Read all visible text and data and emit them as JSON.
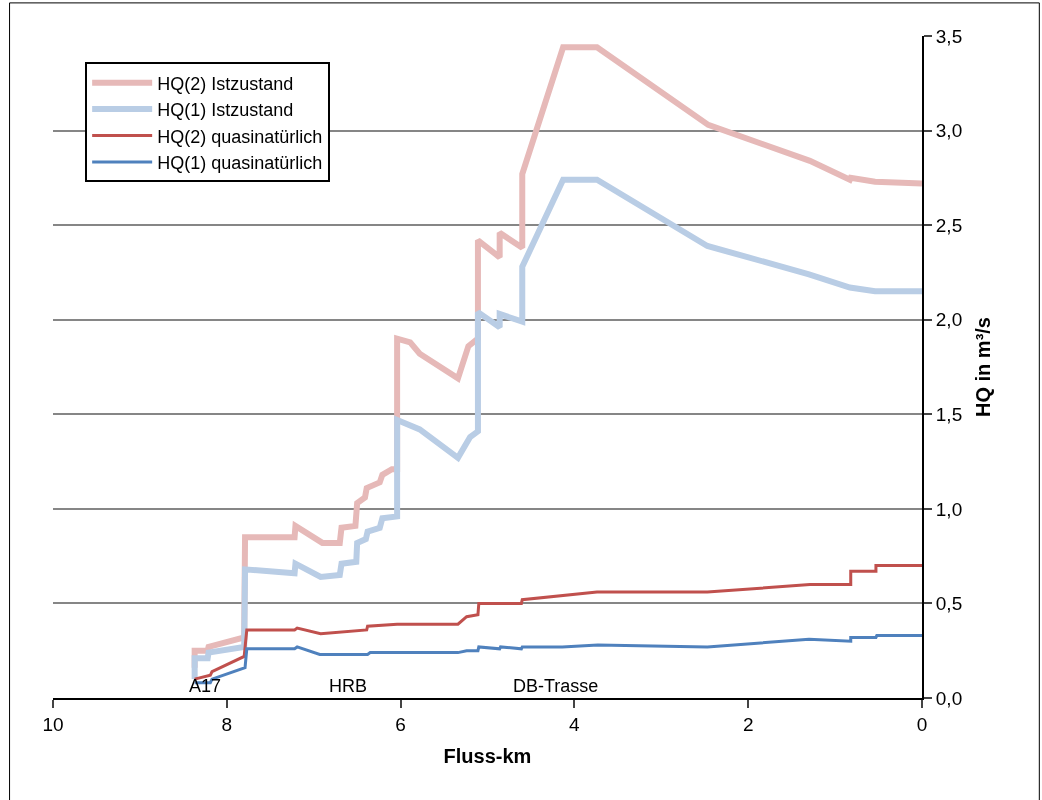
{
  "chart_data": {
    "type": "line",
    "xlabel": "Fluss-km",
    "ylabel": "HQ in m³/s",
    "xlim": [
      10,
      0
    ],
    "xticks": [
      10,
      8,
      6,
      4,
      2,
      0
    ],
    "ylim": [
      0,
      3.5
    ],
    "yticks": [
      {
        "value": 0,
        "label": "0,0"
      },
      {
        "value": 0.5,
        "label": "0,5"
      },
      {
        "value": 1,
        "label": "1,0"
      },
      {
        "value": 1.5,
        "label": "1,5"
      },
      {
        "value": 2,
        "label": "2,0"
      },
      {
        "value": 2.5,
        "label": "2,5"
      },
      {
        "value": 3,
        "label": "3,0"
      },
      {
        "value": 3.5,
        "label": "3,5"
      }
    ],
    "grid": "y",
    "legend": "top left",
    "marker": "none",
    "line_style": "solid",
    "series": [
      {
        "name": "HQ(2) Istzustand",
        "color": "#e6b9b8",
        "x": [
          8.37,
          8.37,
          8.22,
          8.21,
          7.8,
          7.79,
          7.22,
          7.21,
          6.9,
          6.7,
          6.68,
          6.52,
          6.5,
          6.41,
          6.39,
          6.24,
          6.21,
          6.1,
          6.04,
          6.04,
          5.89,
          5.78,
          5.34,
          5.22,
          5.11,
          5.11,
          4.86,
          4.86,
          4.6,
          4.6,
          4.13,
          3.74,
          2.46,
          1.29,
          0.83,
          0.82,
          0.54,
          0
        ],
        "values": [
          0.16,
          0.25,
          0.25,
          0.27,
          0.32,
          0.85,
          0.85,
          0.91,
          0.82,
          0.82,
          0.9,
          0.91,
          1.03,
          1.06,
          1.11,
          1.14,
          1.18,
          1.21,
          1.21,
          1.9,
          1.88,
          1.82,
          1.69,
          1.86,
          1.9,
          2.42,
          2.33,
          2.46,
          2.38,
          2.77,
          3.44,
          3.44,
          3.03,
          2.84,
          2.74,
          2.75,
          2.73,
          2.72
        ]
      },
      {
        "name": "HQ(1) Istzustand",
        "color": "#b9cde5",
        "x": [
          8.37,
          8.37,
          8.22,
          8.21,
          7.8,
          7.79,
          7.22,
          7.21,
          6.92,
          6.7,
          6.68,
          6.51,
          6.5,
          6.4,
          6.38,
          6.24,
          6.21,
          6.04,
          6.04,
          5.78,
          5.34,
          5.2,
          5.11,
          5.11,
          4.86,
          4.86,
          4.6,
          4.6,
          4.13,
          3.74,
          2.47,
          1.3,
          0.83,
          0.54,
          0
        ],
        "values": [
          0.1,
          0.21,
          0.21,
          0.24,
          0.27,
          0.68,
          0.66,
          0.71,
          0.64,
          0.65,
          0.71,
          0.72,
          0.82,
          0.84,
          0.88,
          0.9,
          0.95,
          0.96,
          1.47,
          1.42,
          1.27,
          1.38,
          1.41,
          2.04,
          1.96,
          2.03,
          1.99,
          2.28,
          2.74,
          2.74,
          2.39,
          2.24,
          2.17,
          2.15,
          2.15
        ]
      },
      {
        "name": "HQ(2) quasinatürlich",
        "color": "#c0504d",
        "x": [
          8.37,
          8.19,
          8.17,
          7.8,
          7.77,
          7.22,
          7.19,
          6.92,
          6.39,
          6.38,
          6.04,
          5.34,
          5.24,
          5.11,
          5.1,
          4.61,
          4.6,
          3.74,
          2.47,
          1.29,
          0.82,
          0.82,
          0.53,
          0.53,
          0
        ],
        "values": [
          0.1,
          0.12,
          0.14,
          0.22,
          0.36,
          0.36,
          0.37,
          0.34,
          0.36,
          0.38,
          0.39,
          0.39,
          0.43,
          0.44,
          0.5,
          0.5,
          0.52,
          0.56,
          0.56,
          0.6,
          0.6,
          0.67,
          0.67,
          0.7,
          0.7
        ]
      },
      {
        "name": "HQ(1) quasinatürlich",
        "color": "#4f81bd",
        "x": [
          8.37,
          8.19,
          8.17,
          7.79,
          7.77,
          7.22,
          7.19,
          6.93,
          6.38,
          6.35,
          5.34,
          5.24,
          5.11,
          5.1,
          4.86,
          4.85,
          4.61,
          4.6,
          4.14,
          3.73,
          2.47,
          1.3,
          0.82,
          0.82,
          0.53,
          0.52,
          0
        ],
        "values": [
          0.08,
          0.08,
          0.1,
          0.16,
          0.26,
          0.26,
          0.27,
          0.23,
          0.23,
          0.24,
          0.24,
          0.25,
          0.25,
          0.27,
          0.26,
          0.27,
          0.26,
          0.27,
          0.27,
          0.28,
          0.27,
          0.31,
          0.3,
          0.32,
          0.32,
          0.33,
          0.33
        ]
      }
    ],
    "annotations": [
      "A17",
      "HRB",
      "DB-Trasse"
    ]
  }
}
